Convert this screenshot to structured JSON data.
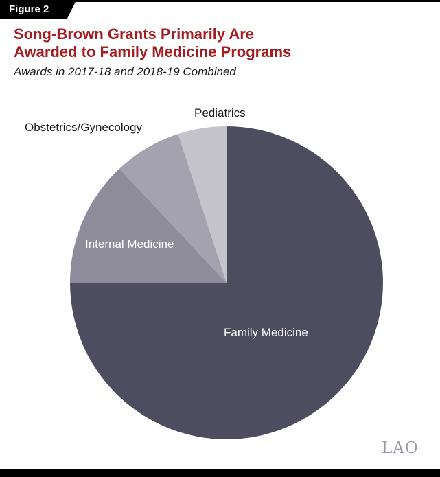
{
  "figure_tag": "Figure 2",
  "header": {
    "title_line1": "Song-Brown Grants Primarily Are",
    "title_line2": "Awarded to Family Medicine Programs"
  },
  "watermark": "LAO",
  "chart_data": {
    "type": "pie",
    "title": "Song-Brown Grants Primarily Are Awarded to Family Medicine Programs",
    "subtitle": "Awards in 2017-18 and 2018-19 Combined",
    "start_angle_deg": 0,
    "direction": "clockwise",
    "legend": "none (direct labels on and around slices)",
    "slices": [
      {
        "label": "Family Medicine",
        "value": 75,
        "color": "#4e4d5f",
        "label_color": "#ffffff",
        "label_inside": true
      },
      {
        "label": "Internal Medicine",
        "value": 13,
        "color": "#8e8b9b",
        "label_color": "#ffffff",
        "label_inside": true
      },
      {
        "label": "Obstetrics/Gynecology",
        "value": 7,
        "color": "#a4a2b0",
        "label_color": "#1a1a1a",
        "label_inside": false
      },
      {
        "label": "Pediatrics",
        "value": 5,
        "color": "#c5c3cc",
        "label_color": "#1a1a1a",
        "label_inside": false
      }
    ]
  }
}
